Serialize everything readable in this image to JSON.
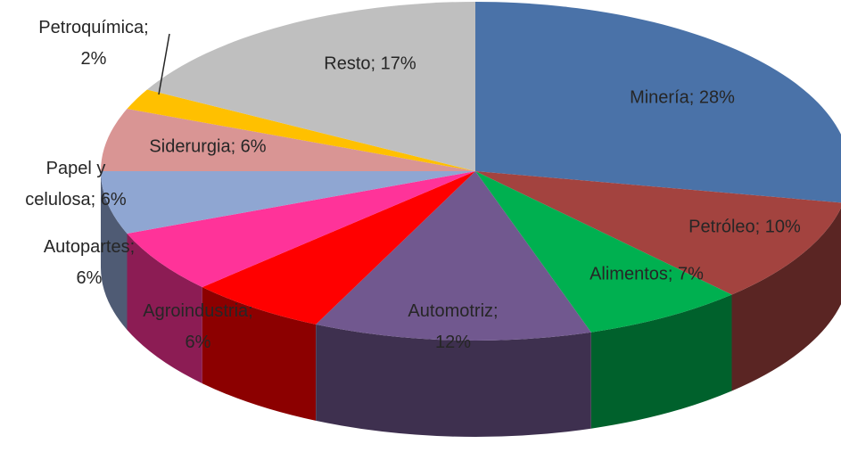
{
  "chart_data": {
    "type": "pie3d",
    "values": [
      28,
      10,
      7,
      12,
      6,
      6,
      6,
      6,
      2,
      17
    ],
    "value_labels": [
      "Minería; 28%",
      "Petróleo; 10%",
      "Alimentos; 7%",
      "Automotriz; 12%",
      "Agroindustria; 6%",
      "Autopartes; 6%",
      "Papel y celulosa; 6%",
      "Siderurgia; 6%",
      "Petroquímica; 2%",
      "Resto; 17%"
    ],
    "colors": [
      "#4a72a8",
      "#a3433f",
      "#00b050",
      "#71588f",
      "#ff0000",
      "#ff3399",
      "#8fa6d2",
      "#d99594",
      "#ffc000",
      "#bfbfbf"
    ]
  }
}
